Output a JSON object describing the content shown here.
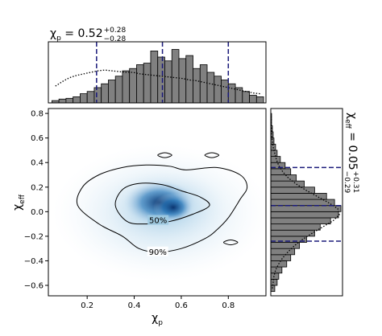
{
  "chart_data": {
    "type": "corner",
    "title": {
      "symbol": "χ",
      "sub": "p",
      "text": " = 0.52",
      "upper": "+0.28",
      "lower": "−0.28"
    },
    "side_title": {
      "symbol": "χ",
      "sub": "eff",
      "text": " = 0.05",
      "upper": "+0.31",
      "lower": "−0.29"
    },
    "xlabel": {
      "symbol": "χ",
      "sub": "p"
    },
    "ylabel": {
      "symbol": "χ",
      "sub": "eff"
    },
    "xlim": [
      0.035,
      0.96
    ],
    "ylim": [
      -0.685,
      0.84
    ],
    "xticks": [
      0.2,
      0.4,
      0.6,
      0.8
    ],
    "yticks": [
      {
        "value": -0.6,
        "label": "−0.6"
      },
      {
        "value": -0.4,
        "label": "−0.4"
      },
      {
        "value": -0.2,
        "label": "−0.2"
      },
      {
        "value": 0,
        "label": "0.0"
      },
      0.2,
      0.4,
      0.6,
      0.8
    ],
    "hist_color": "#808080",
    "quantile_color": "#1a1a7a",
    "contour_color": "#000000",
    "top_hist": {
      "lim": [
        0,
        80
      ],
      "bins": [
        0.05,
        0.08,
        0.11,
        0.14,
        0.17,
        0.2,
        0.23,
        0.26,
        0.29,
        0.32,
        0.35,
        0.38,
        0.41,
        0.44,
        0.47,
        0.5,
        0.53,
        0.56,
        0.59,
        0.62,
        0.65,
        0.68,
        0.71,
        0.74,
        0.77,
        0.8,
        0.83,
        0.86,
        0.89,
        0.92,
        0.95
      ],
      "counts": [
        3,
        5,
        6,
        8,
        12,
        15,
        20,
        25,
        30,
        35,
        42,
        45,
        50,
        52,
        68,
        60,
        55,
        70,
        58,
        62,
        45,
        50,
        40,
        35,
        30,
        25,
        20,
        15,
        10,
        8
      ],
      "prior": [
        22,
        28,
        33,
        36,
        38,
        40,
        42,
        43,
        42,
        41,
        40,
        40,
        38,
        37,
        36,
        35,
        34,
        33,
        32,
        30,
        29,
        27,
        25,
        23,
        21,
        19,
        17,
        15,
        13,
        12
      ],
      "quantiles": [
        0.24,
        0.52,
        0.8
      ]
    },
    "side_hist": {
      "lim": [
        0,
        90
      ],
      "bins": [
        -0.65,
        -0.6,
        -0.55,
        -0.5,
        -0.45,
        -0.4,
        -0.35,
        -0.3,
        -0.25,
        -0.2,
        -0.15,
        -0.1,
        -0.05,
        0,
        0.05,
        0.1,
        0.15,
        0.2,
        0.25,
        0.3,
        0.35,
        0.4,
        0.45,
        0.5,
        0.55,
        0.6,
        0.65,
        0.7,
        0.75,
        0.8
      ],
      "counts": [
        5,
        8,
        10,
        14,
        20,
        25,
        30,
        36,
        45,
        55,
        62,
        75,
        85,
        88,
        80,
        70,
        55,
        42,
        32,
        25,
        18,
        12,
        8,
        6,
        4,
        3,
        2,
        1,
        1
      ],
      "prior": [
        2,
        3,
        4,
        6,
        10,
        15,
        22,
        30,
        40,
        52,
        65,
        78,
        86,
        84,
        72,
        58,
        44,
        32,
        22,
        15,
        10,
        7,
        5,
        3,
        2,
        1,
        1,
        0.5,
        0.5
      ],
      "quantiles": [
        0.36,
        0.05,
        -0.24
      ]
    },
    "contours": [
      {
        "label": "50%",
        "paths": [
          {
            "x": [
              0.32,
              0.35,
              0.42,
              0.52,
              0.6,
              0.68,
              0.72,
              0.65,
              0.55,
              0.45,
              0.37
            ],
            "y": [
              0.05,
              0.18,
              0.23,
              0.22,
              0.17,
              0.12,
              0.05,
              -0.02,
              -0.08,
              -0.1,
              -0.08
            ]
          }
        ]
      },
      {
        "label": "90%",
        "paths": [
          {
            "x": [
              0.18,
              0.25,
              0.35,
              0.45,
              0.55,
              0.62,
              0.75,
              0.85,
              0.88,
              0.85,
              0.8,
              0.75,
              0.7,
              0.6,
              0.5,
              0.42,
              0.35,
              0.25,
              0.16
            ],
            "y": [
              0.2,
              0.3,
              0.36,
              0.38,
              0.37,
              0.34,
              0.36,
              0.3,
              0.2,
              0.1,
              -0.05,
              -0.15,
              -0.22,
              -0.3,
              -0.33,
              -0.3,
              -0.2,
              -0.1,
              0.05
            ]
          },
          {
            "x": [
              0.5,
              0.53,
              0.56,
              0.53
            ],
            "y": [
              0.46,
              0.48,
              0.46,
              0.44
            ]
          },
          {
            "x": [
              0.7,
              0.73,
              0.76,
              0.73
            ],
            "y": [
              0.46,
              0.48,
              0.46,
              0.44
            ]
          },
          {
            "x": [
              0.78,
              0.81,
              0.84,
              0.81
            ],
            "y": [
              -0.25,
              -0.23,
              -0.25,
              -0.27
            ]
          }
        ]
      }
    ]
  }
}
